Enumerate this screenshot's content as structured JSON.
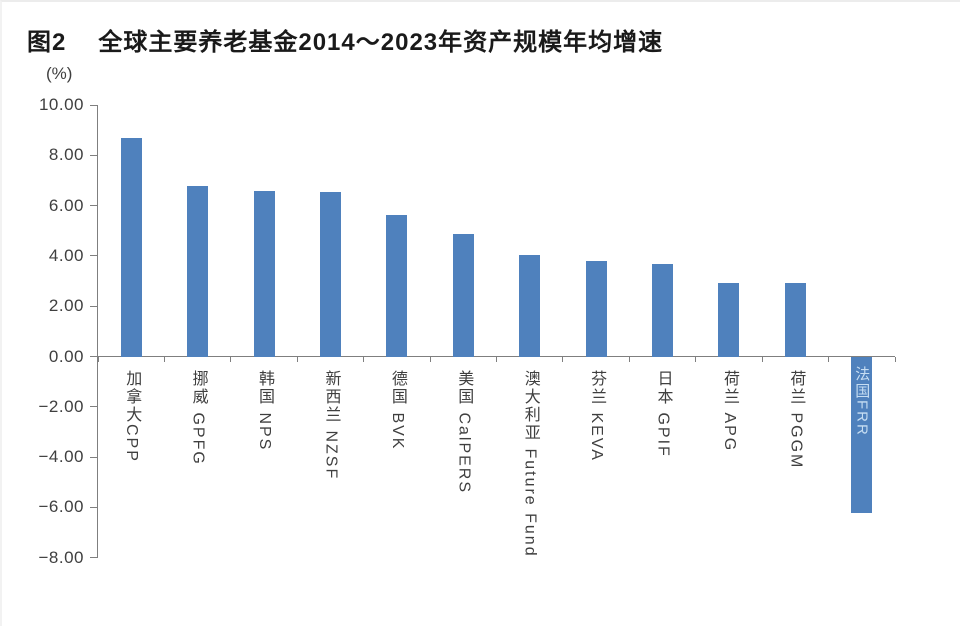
{
  "figure": {
    "label": "图2",
    "title": "全球主要养老基金2014～2023年资产规模年均增速"
  },
  "chart_data": {
    "type": "bar",
    "title": "全球主要养老基金2014～2023年资产规模年均增速",
    "unit_label": "(%)",
    "xlabel": "",
    "ylabel": "(%)",
    "categories": [
      "加拿大CPP",
      "挪威 GPFG",
      "韩国 NPS",
      "新西兰 NZSF",
      "德国 BVK",
      "美国 CalPERS",
      "澳大利亚 Future Fund",
      "芬兰 KEVA",
      "日本 GPIF",
      "荷兰 APG",
      "荷兰 PGGM",
      "法国FRR"
    ],
    "values": [
      8.7,
      6.8,
      6.6,
      6.55,
      5.65,
      4.9,
      4.05,
      3.8,
      3.7,
      2.95,
      2.95,
      -6.2
    ],
    "ylim": [
      -8,
      10
    ],
    "y_tick_step": 2,
    "y_ticks": [
      "10.00",
      "8.00",
      "6.00",
      "4.00",
      "2.00",
      "0.00",
      "−2.00",
      "−4.00",
      "−6.00",
      "−8.00"
    ],
    "grid": false,
    "legend": false,
    "bar_color": "#4f81bd",
    "axis_color": "#7f7f7f",
    "text_color": "#3f3f3f",
    "negative_label_inside": true,
    "negative_label_color": "#c6ddf2"
  }
}
